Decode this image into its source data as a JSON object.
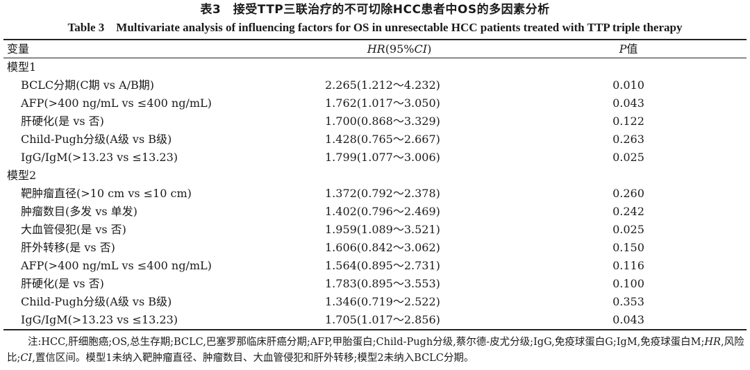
{
  "title_cn": "表3　接受TTP三联治疗的不可切除HCC患者中OS的多因素分析",
  "title_en": "Table 3　Multivariate analysis of influencing factors for OS in unresectable HCC patients treated with TTP triple therapy",
  "header": {
    "variable": "变量",
    "hr_italic": "HR",
    "hr_rest": "(95%",
    "ci_italic": "CI",
    "hr_close": ")",
    "p_italic": "P",
    "p_rest": "值"
  },
  "groups": [
    {
      "label": "模型1",
      "rows": [
        {
          "variable": "BCLC分期(C期 vs A/B期)",
          "hr": "2.265(1.212～4.232)",
          "p": "0.010"
        },
        {
          "variable": "AFP(>400 ng/mL vs ≤400 ng/mL)",
          "hr": "1.762(1.017～3.050)",
          "p": "0.043"
        },
        {
          "variable": "肝硬化(是 vs 否)",
          "hr": "1.700(0.868～3.329)",
          "p": "0.122"
        },
        {
          "variable": "Child-Pugh分级(A级 vs B级)",
          "hr": "1.428(0.765～2.667)",
          "p": "0.263"
        },
        {
          "variable": "IgG/IgM(>13.23 vs ≤13.23)",
          "hr": "1.799(1.077～3.006)",
          "p": "0.025"
        }
      ]
    },
    {
      "label": "模型2",
      "rows": [
        {
          "variable": "靶肿瘤直径(>10 cm vs ≤10 cm)",
          "hr": "1.372(0.792～2.378)",
          "p": "0.260"
        },
        {
          "variable": "肿瘤数目(多发 vs 单发)",
          "hr": "1.402(0.796～2.469)",
          "p": "0.242"
        },
        {
          "variable": "大血管侵犯(是 vs 否)",
          "hr": "1.959(1.089～3.521)",
          "p": "0.025"
        },
        {
          "variable": "肝外转移(是 vs 否)",
          "hr": "1.606(0.842～3.062)",
          "p": "0.150"
        },
        {
          "variable": "AFP(>400 ng/mL vs ≤400 ng/mL)",
          "hr": "1.564(0.895～2.731)",
          "p": "0.116"
        },
        {
          "variable": "肝硬化(是 vs 否)",
          "hr": "1.783(0.895～3.553)",
          "p": "0.100"
        },
        {
          "variable": "Child-Pugh分级(A级 vs B级)",
          "hr": "1.346(0.719～2.522)",
          "p": "0.353"
        },
        {
          "variable": "IgG/IgM(>13.23 vs ≤13.23)",
          "hr": "1.705(1.017～2.856)",
          "p": "0.043"
        }
      ]
    }
  ],
  "note": {
    "part1": "注:HCC,肝细胞癌;OS,总生存期;BCLC,巴塞罗那临床肝癌分期;AFP,甲胎蛋白;Child-Pugh分级,蔡尔德-皮尤分级;IgG,免疫球蛋白G;IgM,免疫球蛋白M;",
    "hr_italic": "HR",
    "part2": ",风险比;",
    "ci_italic": "CI",
    "part3": ",置信区间。模型1未纳入靶肿瘤直径、肿瘤数目、大血管侵犯和肝外转移;模型2未纳入BCLC分期。"
  }
}
